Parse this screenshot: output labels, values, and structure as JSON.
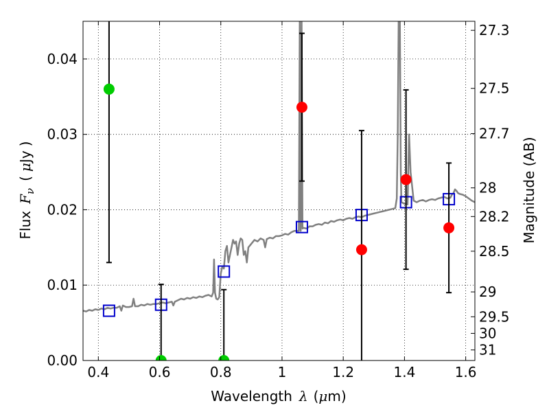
{
  "chart_data": {
    "type": "scatter",
    "xlabel_text": "Wavelength",
    "xlabel_symbol": "λ",
    "xlabel_unit_open": "(",
    "xlabel_unit_mu": "μ",
    "xlabel_unit_rest": "m)",
    "ylabel_text": "Flux",
    "ylabel_symbol": "F",
    "ylabel_subscript": "ν",
    "ylabel_unit_open": "(",
    "ylabel_unit_mu": "μ",
    "ylabel_unit_rest": "Jy",
    "ylabel_unit_close": ")",
    "y2label": "Magnitude (AB)",
    "xlim": [
      0.35,
      1.63
    ],
    "ylim": [
      0.0,
      0.045
    ],
    "grid": true,
    "x_ticks": [
      0.4,
      0.6,
      0.8,
      1.0,
      1.2,
      1.4,
      1.6
    ],
    "x_tick_labels": [
      "0.4",
      "0.6",
      "0.8",
      "1",
      "1.2",
      "1.4",
      "1.6"
    ],
    "y_ticks": [
      0.0,
      0.01,
      0.02,
      0.03,
      0.04
    ],
    "y_tick_labels": [
      "0.00",
      "0.01",
      "0.02",
      "0.03",
      "0.04"
    ],
    "right_ticks": [
      {
        "label": "27.3",
        "flux": 0.0438
      },
      {
        "label": "27.5",
        "flux": 0.0361
      },
      {
        "label": "27.7",
        "flux": 0.0301
      },
      {
        "label": "28",
        "flux": 0.0229
      },
      {
        "label": "28.2",
        "flux": 0.0191
      },
      {
        "label": "28.5",
        "flux": 0.0145
      },
      {
        "label": "29",
        "flux": 0.0091
      },
      {
        "label": "29.5",
        "flux": 0.0058
      },
      {
        "label": "30",
        "flux": 0.0036
      },
      {
        "label": "31",
        "flux": 0.0014
      }
    ],
    "series": [
      {
        "kind": "spectrum",
        "color": "#808080",
        "points": [
          [
            0.35,
            0.0066
          ],
          [
            0.36,
            0.0065
          ],
          [
            0.37,
            0.0067
          ],
          [
            0.38,
            0.0066
          ],
          [
            0.39,
            0.0068
          ],
          [
            0.4,
            0.0067
          ],
          [
            0.41,
            0.0069
          ],
          [
            0.42,
            0.0068
          ],
          [
            0.43,
            0.007
          ],
          [
            0.44,
            0.0069
          ],
          [
            0.45,
            0.007
          ],
          [
            0.46,
            0.007
          ],
          [
            0.47,
            0.0072
          ],
          [
            0.475,
            0.0066
          ],
          [
            0.48,
            0.0073
          ],
          [
            0.49,
            0.0071
          ],
          [
            0.5,
            0.0071
          ],
          [
            0.51,
            0.0072
          ],
          [
            0.515,
            0.0082
          ],
          [
            0.52,
            0.0072
          ],
          [
            0.53,
            0.0072
          ],
          [
            0.54,
            0.0074
          ],
          [
            0.55,
            0.0073
          ],
          [
            0.56,
            0.0075
          ],
          [
            0.57,
            0.0074
          ],
          [
            0.58,
            0.0075
          ],
          [
            0.59,
            0.0075
          ],
          [
            0.6,
            0.0076
          ],
          [
            0.61,
            0.0077
          ],
          [
            0.62,
            0.0076
          ],
          [
            0.63,
            0.0077
          ],
          [
            0.64,
            0.0078
          ],
          [
            0.645,
            0.0073
          ],
          [
            0.65,
            0.0078
          ],
          [
            0.66,
            0.008
          ],
          [
            0.67,
            0.0082
          ],
          [
            0.68,
            0.0081
          ],
          [
            0.69,
            0.0083
          ],
          [
            0.7,
            0.0082
          ],
          [
            0.71,
            0.0084
          ],
          [
            0.72,
            0.0083
          ],
          [
            0.73,
            0.0085
          ],
          [
            0.74,
            0.0084
          ],
          [
            0.75,
            0.0086
          ],
          [
            0.76,
            0.0087
          ],
          [
            0.77,
            0.0085
          ],
          [
            0.775,
            0.009
          ],
          [
            0.778,
            0.0134
          ],
          [
            0.781,
            0.009
          ],
          [
            0.785,
            0.0082
          ],
          [
            0.79,
            0.0081
          ],
          [
            0.795,
            0.0084
          ],
          [
            0.8,
            0.0115
          ],
          [
            0.805,
            0.0125
          ],
          [
            0.81,
            0.0122
          ],
          [
            0.815,
            0.0145
          ],
          [
            0.82,
            0.0152
          ],
          [
            0.825,
            0.013
          ],
          [
            0.83,
            0.014
          ],
          [
            0.835,
            0.015
          ],
          [
            0.84,
            0.016
          ],
          [
            0.845,
            0.0155
          ],
          [
            0.85,
            0.0158
          ],
          [
            0.855,
            0.014
          ],
          [
            0.86,
            0.0155
          ],
          [
            0.865,
            0.0162
          ],
          [
            0.87,
            0.016
          ],
          [
            0.875,
            0.014
          ],
          [
            0.88,
            0.0145
          ],
          [
            0.885,
            0.013
          ],
          [
            0.89,
            0.015
          ],
          [
            0.9,
            0.0155
          ],
          [
            0.91,
            0.016
          ],
          [
            0.92,
            0.0158
          ],
          [
            0.93,
            0.0162
          ],
          [
            0.94,
            0.016
          ],
          [
            0.945,
            0.015
          ],
          [
            0.95,
            0.0161
          ],
          [
            0.96,
            0.0163
          ],
          [
            0.97,
            0.0162
          ],
          [
            0.98,
            0.0165
          ],
          [
            0.99,
            0.0165
          ],
          [
            1.0,
            0.0166
          ],
          [
            1.01,
            0.0168
          ],
          [
            1.02,
            0.0167
          ],
          [
            1.03,
            0.017
          ],
          [
            1.04,
            0.0172
          ],
          [
            1.05,
            0.0172
          ],
          [
            1.055,
            0.0172
          ],
          [
            1.058,
            0.045
          ],
          [
            1.061,
            0.0172
          ],
          [
            1.064,
            0.045
          ],
          [
            1.067,
            0.0175
          ],
          [
            1.07,
            0.0176
          ],
          [
            1.08,
            0.0175
          ],
          [
            1.09,
            0.0178
          ],
          [
            1.1,
            0.0178
          ],
          [
            1.11,
            0.018
          ],
          [
            1.12,
            0.0181
          ],
          [
            1.13,
            0.018
          ],
          [
            1.14,
            0.0183
          ],
          [
            1.15,
            0.0182
          ],
          [
            1.16,
            0.0185
          ],
          [
            1.17,
            0.0184
          ],
          [
            1.18,
            0.0186
          ],
          [
            1.19,
            0.0187
          ],
          [
            1.2,
            0.0186
          ],
          [
            1.21,
            0.0188
          ],
          [
            1.22,
            0.0189
          ],
          [
            1.23,
            0.0188
          ],
          [
            1.24,
            0.019
          ],
          [
            1.25,
            0.0191
          ],
          [
            1.26,
            0.019
          ],
          [
            1.27,
            0.0192
          ],
          [
            1.28,
            0.0193
          ],
          [
            1.29,
            0.0194
          ],
          [
            1.3,
            0.0195
          ],
          [
            1.31,
            0.0196
          ],
          [
            1.32,
            0.0197
          ],
          [
            1.33,
            0.0198
          ],
          [
            1.34,
            0.0199
          ],
          [
            1.35,
            0.02
          ],
          [
            1.36,
            0.0201
          ],
          [
            1.37,
            0.0202
          ],
          [
            1.375,
            0.0215
          ],
          [
            1.378,
            0.03
          ],
          [
            1.381,
            0.045
          ],
          [
            1.385,
            0.045
          ],
          [
            1.388,
            0.025
          ],
          [
            1.39,
            0.021
          ],
          [
            1.4,
            0.0208
          ],
          [
            1.41,
            0.0207
          ],
          [
            1.415,
            0.03
          ],
          [
            1.42,
            0.025
          ],
          [
            1.43,
            0.0212
          ],
          [
            1.44,
            0.021
          ],
          [
            1.45,
            0.0212
          ],
          [
            1.46,
            0.0213
          ],
          [
            1.47,
            0.0211
          ],
          [
            1.48,
            0.0213
          ],
          [
            1.49,
            0.0214
          ],
          [
            1.5,
            0.0213
          ],
          [
            1.51,
            0.0215
          ],
          [
            1.52,
            0.0216
          ],
          [
            1.53,
            0.0217
          ],
          [
            1.54,
            0.0215
          ],
          [
            1.55,
            0.0216
          ],
          [
            1.555,
            0.022
          ],
          [
            1.56,
            0.0222
          ],
          [
            1.565,
            0.0227
          ],
          [
            1.57,
            0.0225
          ],
          [
            1.575,
            0.0222
          ],
          [
            1.58,
            0.0221
          ],
          [
            1.59,
            0.022
          ],
          [
            1.6,
            0.0218
          ],
          [
            1.61,
            0.0215
          ],
          [
            1.62,
            0.0212
          ],
          [
            1.63,
            0.021
          ]
        ]
      },
      {
        "kind": "model_photometry",
        "marker": "open-square",
        "color": "#0000cc",
        "x": [
          0.435,
          0.605,
          0.81,
          1.065,
          1.26,
          1.405,
          1.545
        ],
        "y": [
          0.0066,
          0.0074,
          0.0118,
          0.0177,
          0.0193,
          0.021,
          0.0214
        ]
      },
      {
        "kind": "observed_flux",
        "marker": "filled-circle",
        "color": "#ff0000",
        "x": [
          1.065,
          1.26,
          1.405,
          1.545
        ],
        "y": [
          0.0336,
          0.0147,
          0.024,
          0.0176
        ],
        "err_low": [
          0.0238,
          0.0,
          0.0121,
          0.009
        ],
        "err_high": [
          0.0434,
          0.0305,
          0.0359,
          0.0262
        ]
      },
      {
        "kind": "observed_flux_low",
        "marker": "filled-circle",
        "color": "#00cc00",
        "x": [
          0.435,
          0.605,
          0.81
        ],
        "y": [
          0.036,
          0.0,
          0.0
        ],
        "err_low": [
          0.013,
          0.0,
          0.0
        ],
        "err_high": [
          0.045,
          0.0101,
          0.0094
        ]
      }
    ]
  }
}
